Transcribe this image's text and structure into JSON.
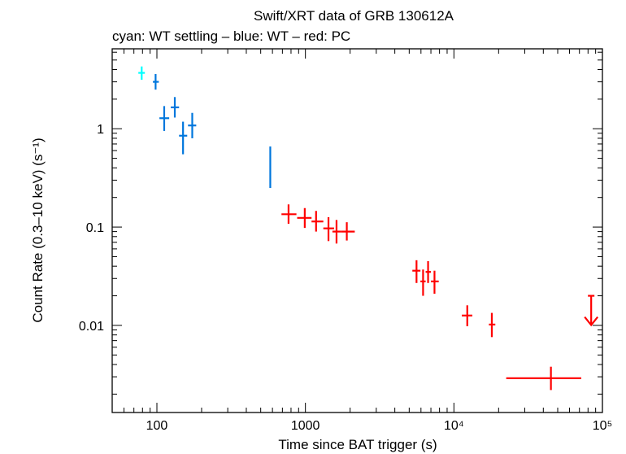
{
  "chart_data": {
    "type": "scatter",
    "title": "Swift/XRT data of GRB 130612A",
    "subtitle": "cyan: WT settling – blue: WT – red: PC",
    "xlabel": "Time since BAT trigger (s)",
    "ylabel": "Count Rate (0.3–10 keV) (s⁻¹)",
    "xscale": "log",
    "yscale": "log",
    "xlim": [
      50,
      100000
    ],
    "ylim": [
      0.0013,
      6.5
    ],
    "x_ticks": [
      {
        "value": 100,
        "label": "100"
      },
      {
        "value": 1000,
        "label": "1000"
      },
      {
        "value": 10000,
        "label": "10⁴"
      },
      {
        "value": 100000,
        "label": "10⁵"
      }
    ],
    "y_ticks": [
      {
        "value": 1,
        "label": "1"
      },
      {
        "value": 0.1,
        "label": "0.1"
      },
      {
        "value": 0.01,
        "label": "0.01"
      }
    ],
    "grid": false,
    "series": [
      {
        "name": "WT settling",
        "color": "#00ffff",
        "points": [
          {
            "x": 79,
            "xlo": 75,
            "xhi": 83,
            "y": 3.7,
            "ylo": 3.15,
            "yhi": 4.3
          }
        ]
      },
      {
        "name": "WT",
        "color": "#0077dd",
        "points": [
          {
            "x": 98,
            "xlo": 94,
            "xhi": 103,
            "y": 3.0,
            "ylo": 2.5,
            "yhi": 3.6
          },
          {
            "x": 112,
            "xlo": 104,
            "xhi": 121,
            "y": 1.28,
            "ylo": 0.95,
            "yhi": 1.7
          },
          {
            "x": 132,
            "xlo": 124,
            "xhi": 141,
            "y": 1.65,
            "ylo": 1.3,
            "yhi": 2.1
          },
          {
            "x": 150,
            "xlo": 141,
            "xhi": 160,
            "y": 0.85,
            "ylo": 0.55,
            "yhi": 1.18
          },
          {
            "x": 173,
            "xlo": 162,
            "xhi": 184,
            "y": 1.08,
            "ylo": 0.8,
            "yhi": 1.45
          },
          {
            "x": 580,
            "xlo": 575,
            "xhi": 585,
            "y": 0.45,
            "ylo": 0.25,
            "yhi": 0.66
          }
        ]
      },
      {
        "name": "PC",
        "color": "#ff0000",
        "points": [
          {
            "x": 770,
            "xlo": 690,
            "xhi": 870,
            "y": 0.135,
            "ylo": 0.108,
            "yhi": 0.17
          },
          {
            "x": 990,
            "xlo": 880,
            "xhi": 1100,
            "y": 0.124,
            "ylo": 0.098,
            "yhi": 0.156
          },
          {
            "x": 1180,
            "xlo": 1100,
            "xhi": 1320,
            "y": 0.114,
            "ylo": 0.09,
            "yhi": 0.146
          },
          {
            "x": 1430,
            "xlo": 1320,
            "xhi": 1560,
            "y": 0.097,
            "ylo": 0.072,
            "yhi": 0.126
          },
          {
            "x": 1620,
            "xlo": 1520,
            "xhi": 1730,
            "y": 0.09,
            "ylo": 0.068,
            "yhi": 0.118
          },
          {
            "x": 1900,
            "xlo": 1730,
            "xhi": 2150,
            "y": 0.09,
            "ylo": 0.073,
            "yhi": 0.112
          },
          {
            "x": 5600,
            "xlo": 5250,
            "xhi": 5950,
            "y": 0.036,
            "ylo": 0.027,
            "yhi": 0.046
          },
          {
            "x": 6200,
            "xlo": 5950,
            "xhi": 6450,
            "y": 0.028,
            "ylo": 0.02,
            "yhi": 0.037
          },
          {
            "x": 6700,
            "xlo": 6450,
            "xhi": 7000,
            "y": 0.035,
            "ylo": 0.027,
            "yhi": 0.045
          },
          {
            "x": 7400,
            "xlo": 7000,
            "xhi": 7900,
            "y": 0.028,
            "ylo": 0.021,
            "yhi": 0.036
          },
          {
            "x": 12300,
            "xlo": 11300,
            "xhi": 13300,
            "y": 0.0126,
            "ylo": 0.0098,
            "yhi": 0.016
          },
          {
            "x": 18000,
            "xlo": 17200,
            "xhi": 19000,
            "y": 0.0102,
            "ylo": 0.0076,
            "yhi": 0.0134
          },
          {
            "x": 45000,
            "xlo": 22500,
            "xhi": 72000,
            "y": 0.0029,
            "ylo": 0.0022,
            "yhi": 0.0038
          }
        ],
        "upper_limits": [
          {
            "x": 84000,
            "y": 0.02
          }
        ]
      }
    ]
  }
}
